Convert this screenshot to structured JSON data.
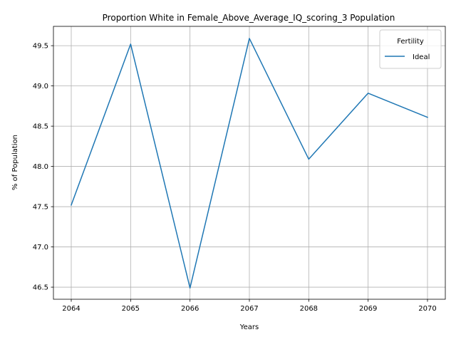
{
  "chart_data": {
    "type": "line",
    "title": "Proportion White in Female_Above_Average_IQ_scoring_3 Population",
    "xlabel": "Years",
    "ylabel": "% of Population",
    "x": [
      2064,
      2065,
      2066,
      2067,
      2068,
      2069,
      2070
    ],
    "series": [
      {
        "name": "Ideal",
        "color": "#1f77b4",
        "values": [
          47.52,
          49.52,
          46.49,
          49.59,
          48.09,
          48.91,
          48.61
        ]
      }
    ],
    "xlim": [
      2063.7,
      2070.3
    ],
    "ylim": [
      46.35,
      49.74
    ],
    "xticks": [
      "2064",
      "2065",
      "2066",
      "2067",
      "2068",
      "2069",
      "2070"
    ],
    "yticks": [
      "46.5",
      "47.0",
      "47.5",
      "48.0",
      "48.5",
      "49.0",
      "49.5"
    ],
    "grid": true,
    "legend": {
      "title": "Fertility",
      "placement": "top-right"
    }
  }
}
